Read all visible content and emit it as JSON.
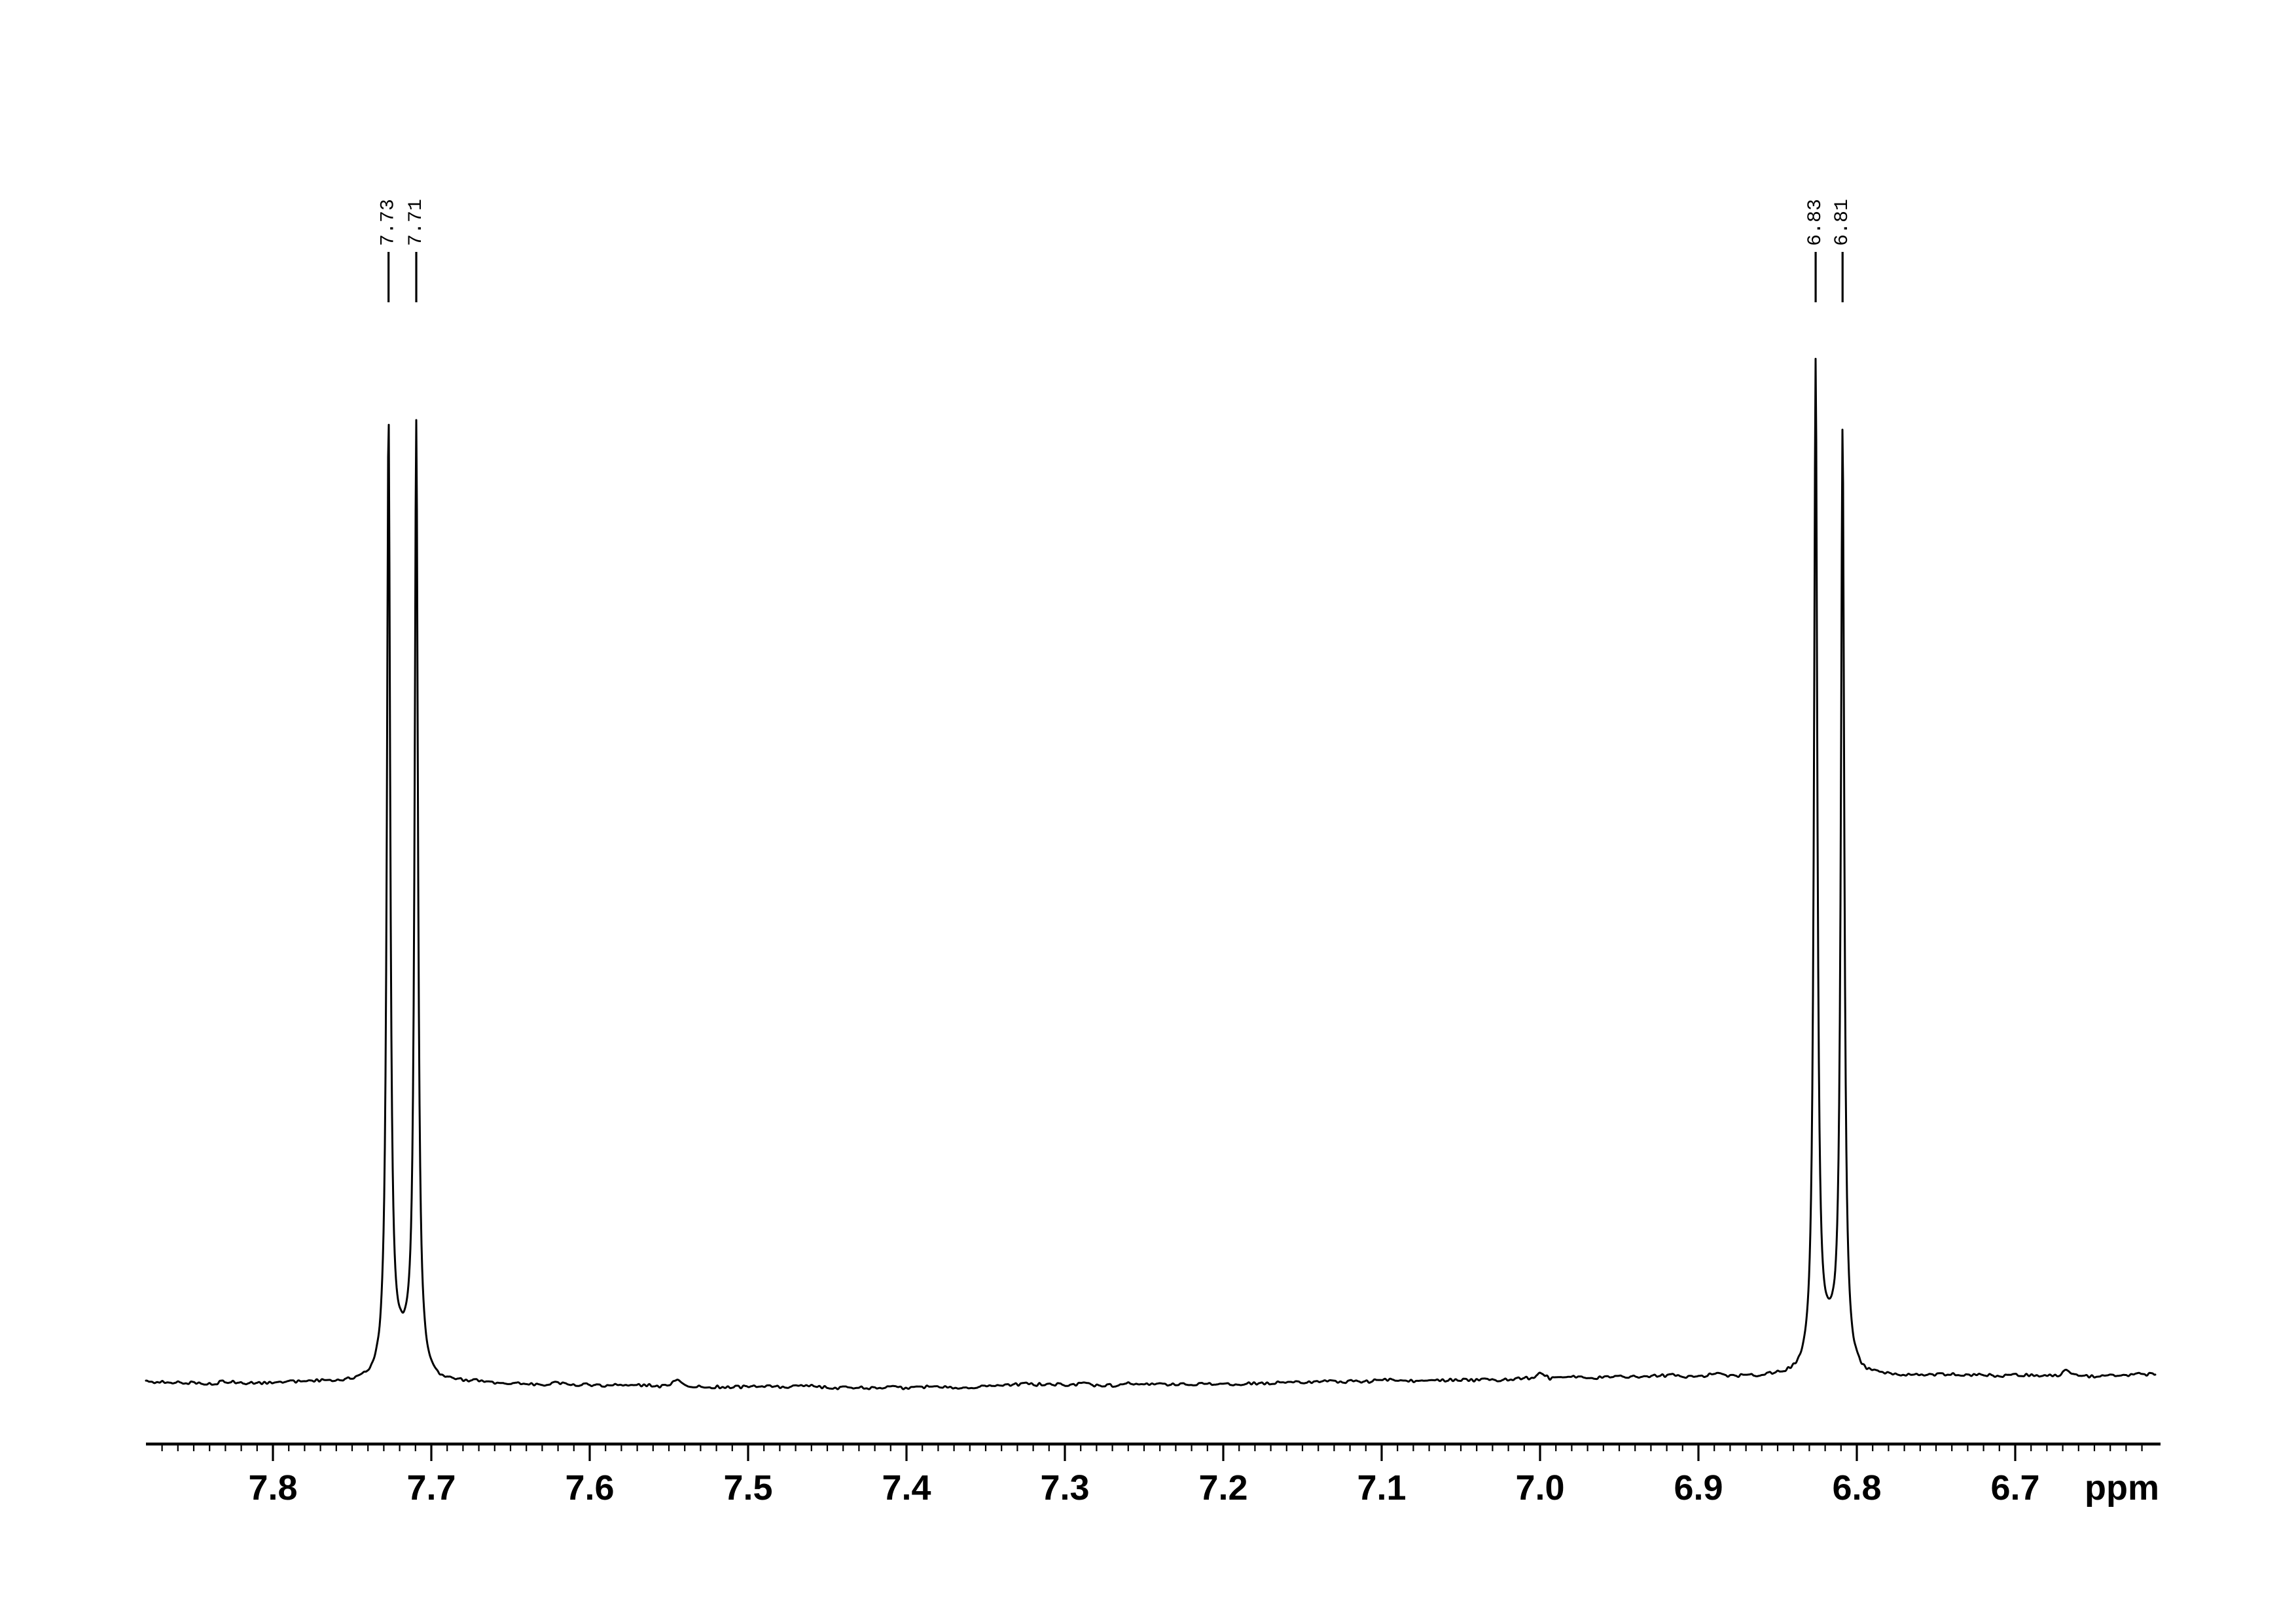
{
  "page": {
    "background_color": "#ffffff",
    "trace_color": "#000000",
    "axis_color": "#000000"
  },
  "chart_data": {
    "type": "line",
    "subtype": "1H-NMR-spectrum",
    "title": "",
    "xlabel": "ppm",
    "ylabel": "",
    "grid": false,
    "legend": null,
    "x_axis": {
      "unit_label": "ppm",
      "direction": "decreasing",
      "range_ppm": [
        7.88,
        6.61
      ],
      "major_tick_values": [
        7.8,
        7.7,
        7.6,
        7.5,
        7.4,
        7.3,
        7.2,
        7.1,
        7.0,
        6.9,
        6.8,
        6.7
      ],
      "major_tick_labels": [
        "7.8",
        "7.7",
        "7.6",
        "7.5",
        "7.4",
        "7.3",
        "7.2",
        "7.1",
        "7.0",
        "6.9",
        "6.8",
        "6.7"
      ],
      "minor_tick_step_ppm": 0.01,
      "minor_tick_range_ppm": [
        7.87,
        6.62
      ]
    },
    "peaks": [
      {
        "label": "7.73",
        "ppm": 7.727,
        "rel_height": 0.952
      },
      {
        "label": "7.71",
        "ppm": 7.7095,
        "rel_height": 0.944
      },
      {
        "label": "6.83",
        "ppm": 6.826,
        "rel_height": 1.0
      },
      {
        "label": "6.81",
        "ppm": 6.809,
        "rel_height": 0.934
      }
    ],
    "multiplets": [
      {
        "type": "doublet",
        "center_ppm": 7.7183,
        "peak_indexes": [
          0,
          1
        ]
      },
      {
        "type": "doublet",
        "center_ppm": 6.8175,
        "peak_indexes": [
          2,
          3
        ]
      }
    ],
    "noise_bumps": [
      {
        "ppm": 7.545,
        "height_frac": 0.0052
      },
      {
        "ppm": 6.999,
        "height_frac": 0.0045
      },
      {
        "ppm": 6.668,
        "height_frac": 0.0058
      }
    ],
    "noise_amplitude_frac": 0.002
  }
}
